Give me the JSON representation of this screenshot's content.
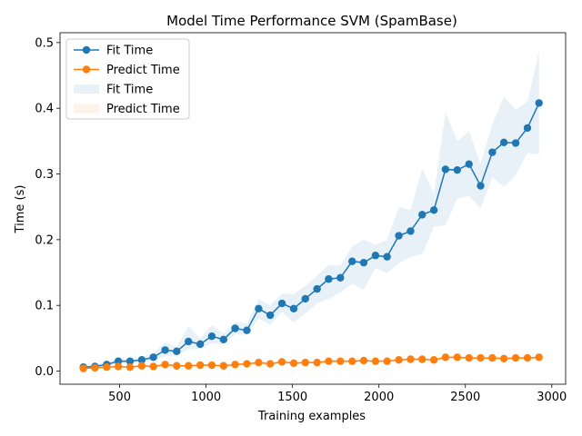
{
  "chart_data": {
    "type": "line",
    "title": "Model Time Performance SVM (SpamBase)",
    "xlabel": "Training examples",
    "ylabel": "Time (s)",
    "xlim": [
      155,
      3080
    ],
    "ylim": [
      -0.02,
      0.515
    ],
    "xticks": [
      500,
      1000,
      1500,
      2000,
      2500,
      3000
    ],
    "yticks": [
      0.0,
      0.1,
      0.2,
      0.3,
      0.4,
      0.5
    ],
    "xtick_labels": [
      "500",
      "1000",
      "1500",
      "2000",
      "2500",
      "3000"
    ],
    "ytick_labels": [
      "0.0",
      "0.1",
      "0.2",
      "0.3",
      "0.4",
      "0.5"
    ],
    "grid": false,
    "legend_position": "top-left",
    "legend": [
      "Fit Time",
      "Predict Time",
      "Fit Time",
      "Predict Time"
    ],
    "x": [
      290,
      357,
      425,
      492,
      560,
      628,
      695,
      763,
      830,
      898,
      966,
      1033,
      1101,
      1168,
      1236,
      1304,
      1371,
      1439,
      1507,
      1574,
      1642,
      1709,
      1777,
      1845,
      1912,
      1980,
      2047,
      2115,
      2183,
      2250,
      2318,
      2385,
      2453,
      2521,
      2588,
      2656,
      2723,
      2791,
      2859,
      2926
    ],
    "series": [
      {
        "name": "Fit Time",
        "color": "#1f77b4",
        "values": [
          0.006,
          0.007,
          0.01,
          0.015,
          0.015,
          0.017,
          0.021,
          0.032,
          0.03,
          0.045,
          0.041,
          0.053,
          0.048,
          0.065,
          0.062,
          0.095,
          0.085,
          0.103,
          0.095,
          0.11,
          0.125,
          0.14,
          0.142,
          0.167,
          0.165,
          0.176,
          0.174,
          0.206,
          0.213,
          0.238,
          0.245,
          0.307,
          0.306,
          0.315,
          0.282,
          0.333,
          0.348,
          0.347,
          0.37,
          0.408
        ],
        "band_lower": [
          0.004,
          0.005,
          0.007,
          0.011,
          0.012,
          0.013,
          0.017,
          0.022,
          0.024,
          0.033,
          0.034,
          0.042,
          0.041,
          0.056,
          0.055,
          0.08,
          0.07,
          0.09,
          0.074,
          0.088,
          0.103,
          0.11,
          0.12,
          0.133,
          0.124,
          0.157,
          0.149,
          0.164,
          0.174,
          0.178,
          0.22,
          0.222,
          0.263,
          0.266,
          0.248,
          0.295,
          0.28,
          0.298,
          0.332,
          0.33
        ],
        "band_upper": [
          0.009,
          0.01,
          0.014,
          0.02,
          0.019,
          0.022,
          0.027,
          0.044,
          0.037,
          0.068,
          0.05,
          0.07,
          0.057,
          0.075,
          0.072,
          0.11,
          0.1,
          0.118,
          0.117,
          0.13,
          0.145,
          0.162,
          0.16,
          0.19,
          0.2,
          0.192,
          0.2,
          0.25,
          0.245,
          0.308,
          0.27,
          0.393,
          0.35,
          0.365,
          0.315,
          0.375,
          0.418,
          0.398,
          0.41,
          0.487
        ]
      },
      {
        "name": "Predict Time",
        "color": "#ff7f0e",
        "values": [
          0.004,
          0.005,
          0.006,
          0.007,
          0.006,
          0.008,
          0.007,
          0.01,
          0.008,
          0.008,
          0.009,
          0.009,
          0.008,
          0.01,
          0.011,
          0.013,
          0.011,
          0.014,
          0.012,
          0.013,
          0.013,
          0.015,
          0.015,
          0.015,
          0.016,
          0.015,
          0.015,
          0.017,
          0.018,
          0.018,
          0.017,
          0.021,
          0.021,
          0.02,
          0.02,
          0.02,
          0.019,
          0.02,
          0.02,
          0.021
        ],
        "band_lower": [
          0.003,
          0.004,
          0.005,
          0.006,
          0.005,
          0.006,
          0.006,
          0.008,
          0.007,
          0.007,
          0.008,
          0.008,
          0.007,
          0.009,
          0.009,
          0.011,
          0.01,
          0.012,
          0.011,
          0.012,
          0.012,
          0.013,
          0.013,
          0.013,
          0.014,
          0.014,
          0.014,
          0.015,
          0.016,
          0.016,
          0.015,
          0.018,
          0.019,
          0.018,
          0.018,
          0.018,
          0.017,
          0.018,
          0.018,
          0.019
        ],
        "band_upper": [
          0.005,
          0.006,
          0.007,
          0.008,
          0.007,
          0.01,
          0.008,
          0.012,
          0.009,
          0.01,
          0.01,
          0.01,
          0.009,
          0.011,
          0.013,
          0.015,
          0.012,
          0.016,
          0.013,
          0.014,
          0.014,
          0.017,
          0.017,
          0.017,
          0.018,
          0.016,
          0.016,
          0.019,
          0.02,
          0.02,
          0.019,
          0.024,
          0.023,
          0.022,
          0.022,
          0.022,
          0.021,
          0.022,
          0.022,
          0.023
        ]
      }
    ]
  }
}
